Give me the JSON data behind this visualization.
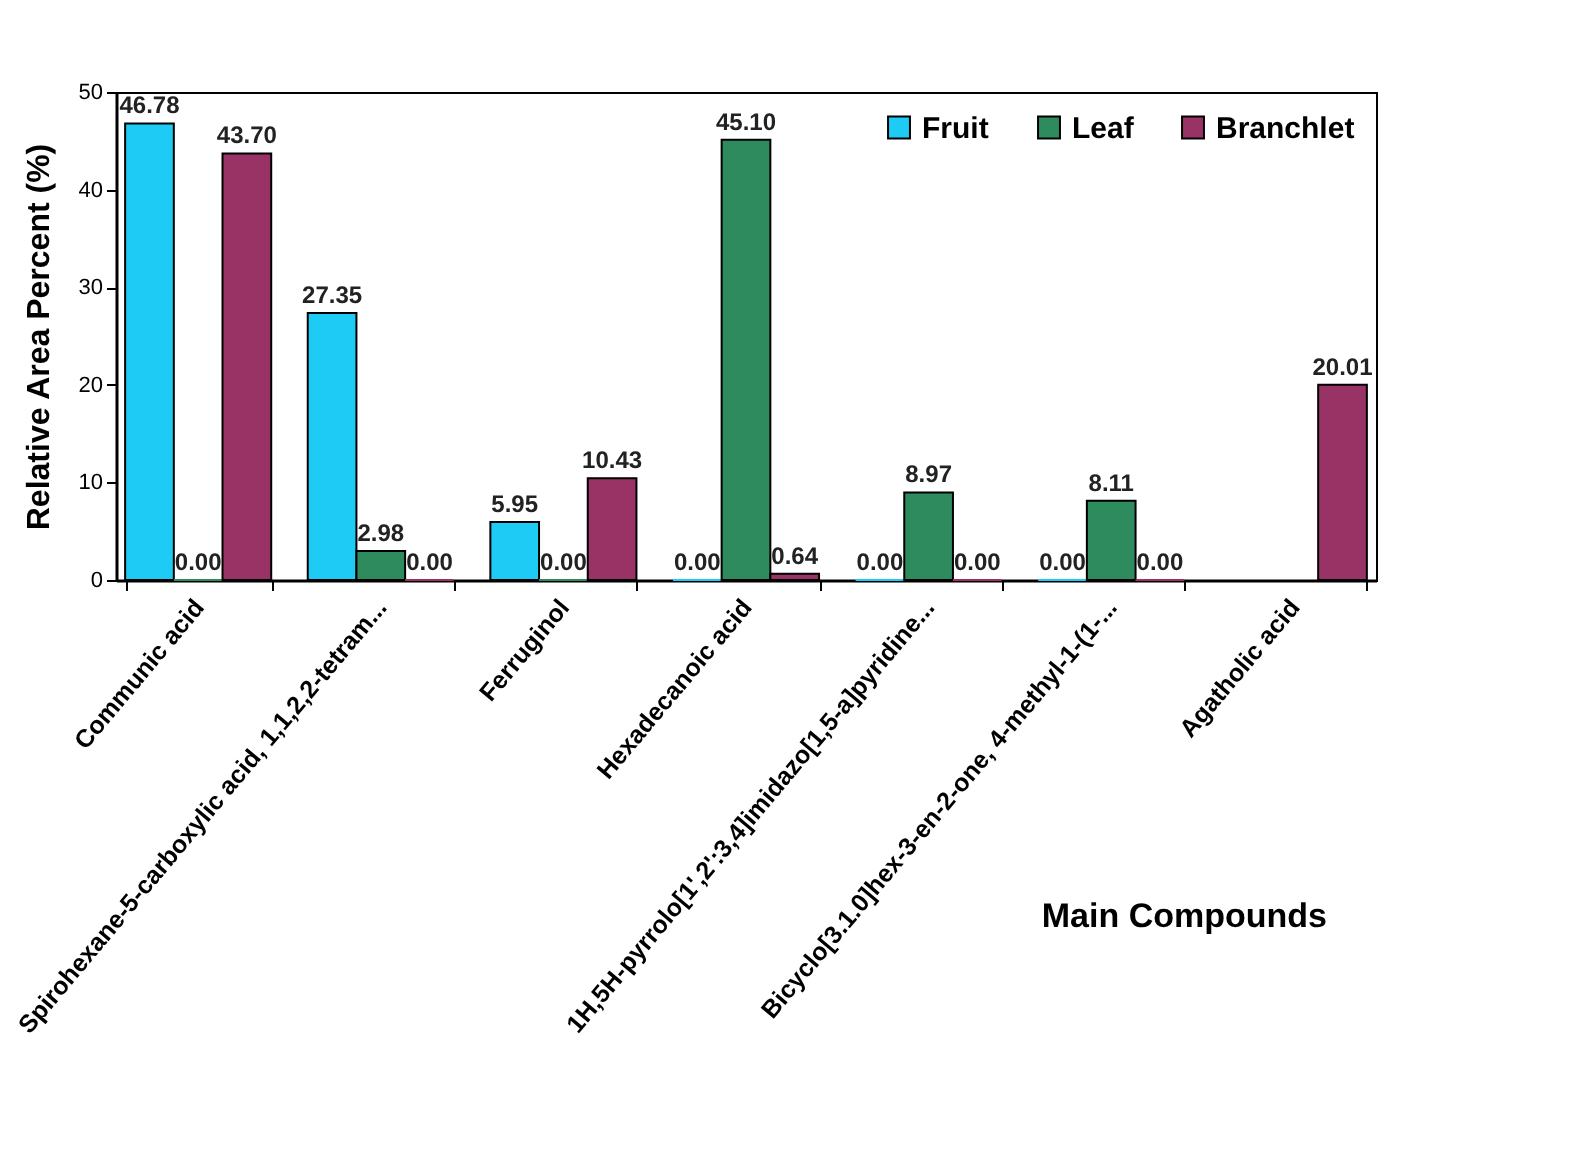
{
  "chart_data": {
    "type": "bar",
    "categories": [
      "Communic acid",
      "Spirohexane-5-carboxylic acid, 1,1,2,2-tetram...",
      "Ferruginol",
      "Hexadecanoic acid",
      "1H,5H-pyrrolo[1',2':3,4]imidazo[1,5-a]pyridine...",
      "Bicyclo[3.1.0]hex-3-en-2-one, 4-methyl-1-(1-...",
      "Agatholic acid"
    ],
    "series": [
      {
        "name": "Fruit",
        "color": "#1ecbf5",
        "values": [
          46.78,
          27.35,
          5.95,
          0,
          0,
          0,
          null
        ],
        "value_labels": [
          "46.78",
          "27.35",
          "5.95",
          "0.00",
          "0.00",
          "0.00",
          null
        ]
      },
      {
        "name": "Leaf",
        "color": "#2e8b5e",
        "values": [
          0,
          2.98,
          0,
          45.1,
          8.97,
          8.11,
          null
        ],
        "value_labels": [
          "0.00",
          "2.98",
          "0.00",
          "45.10",
          "8.97",
          "8.11",
          null
        ]
      },
      {
        "name": "Branchlet",
        "color": "#993366",
        "values": [
          43.7,
          0,
          10.43,
          0.64,
          0,
          0,
          20.01
        ],
        "value_labels": [
          "43.70",
          "0.00",
          "10.43",
          "0.64",
          "0.00",
          "0.00",
          "20.01"
        ]
      }
    ],
    "xlabel": "Main Compounds",
    "ylabel": "Relative Area Percent (%)",
    "ylim": [
      0,
      50
    ],
    "yticks": [
      0,
      10,
      20,
      30,
      40,
      50
    ],
    "grid": false,
    "legend": "top right"
  }
}
